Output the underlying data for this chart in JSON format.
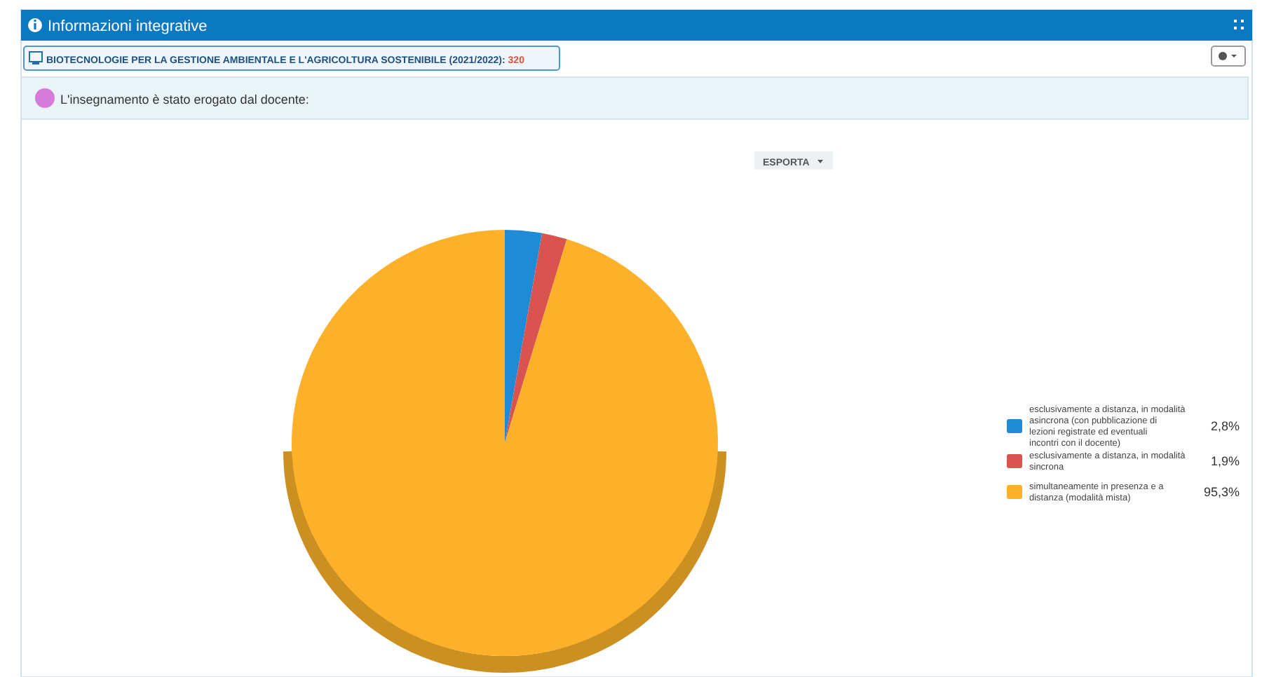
{
  "chart_data": {
    "type": "pie",
    "title": "Informazioni integrative",
    "subtitle": "BIOTECNOLOGIE PER LA GESTIONE AMBIENTALE E L'AGRICOLTURA SOSTENIBILE (2021/2022): 320",
    "annotations": [
      "L'insegnamento è stato erogato dal docente:",
      "ESPORTA"
    ],
    "categories": [
      "esclusivamente a distanza, in modalità asincrona (con pubblicazione di lezioni registrate ed eventuali incontri con il docente)",
      "esclusivamente a distanza, in modalità sincrona",
      "simultaneamente in presenza e a distanza (modalità mista)"
    ],
    "values": [
      2.8,
      1.9,
      95.3
    ],
    "colors": [
      "#1f8ad6",
      "#d9534f",
      "#fdb12a"
    ],
    "value_labels": [
      "2,8%",
      "1,9%",
      "95,3%"
    ],
    "legend": "right"
  }
}
